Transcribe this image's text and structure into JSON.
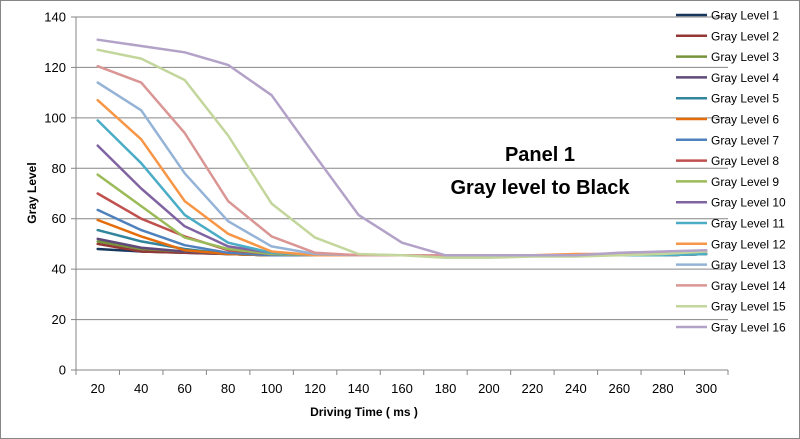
{
  "chart_data": {
    "type": "line",
    "title": "",
    "annotation_lines": [
      "Panel 1",
      "Gray level to Black"
    ],
    "xlabel": "Driving Time ( ms )",
    "ylabel": "Gray Level",
    "x": [
      20,
      40,
      60,
      80,
      100,
      120,
      140,
      160,
      180,
      200,
      220,
      240,
      260,
      280,
      300
    ],
    "ylim": [
      0,
      140
    ],
    "yticks": [
      0,
      20,
      40,
      60,
      80,
      100,
      120,
      140
    ],
    "grid": "horizontal",
    "legend_position": "right",
    "series": [
      {
        "name": "Gray Level 1",
        "color": "#17375E",
        "values": [
          48,
          47,
          46.5,
          46,
          45.5,
          45.5,
          45.5,
          45.5,
          45.5,
          45.5,
          45.5,
          45.5,
          45.5,
          45.5,
          46
        ]
      },
      {
        "name": "Gray Level 2",
        "color": "#953735",
        "values": [
          50,
          47,
          46.5,
          46,
          45.5,
          45.5,
          45.5,
          45.5,
          45.5,
          45.5,
          45.5,
          45.5,
          45.5,
          45.5,
          46
        ]
      },
      {
        "name": "Gray Level 3",
        "color": "#77933C",
        "values": [
          51,
          48,
          47,
          46,
          45.5,
          45.5,
          45.5,
          45.5,
          45.5,
          45.5,
          45.5,
          45.5,
          45.5,
          45.5,
          46
        ]
      },
      {
        "name": "Gray Level 4",
        "color": "#5F497A",
        "values": [
          52,
          48.5,
          47,
          46,
          45.5,
          45.5,
          45.5,
          45.5,
          45.5,
          45.5,
          45.5,
          45.5,
          45.5,
          45.5,
          46
        ]
      },
      {
        "name": "Gray Level 5",
        "color": "#31859C",
        "values": [
          55.5,
          51,
          48,
          46,
          45.5,
          45.5,
          45.5,
          45.5,
          45.5,
          45.5,
          45.5,
          45.5,
          45.5,
          45.5,
          46
        ]
      },
      {
        "name": "Gray Level 6",
        "color": "#E46C0A",
        "values": [
          59.5,
          53,
          47.5,
          46,
          45.5,
          45.5,
          45.5,
          45.5,
          45.5,
          45.5,
          45.5,
          45.5,
          45.5,
          45.5,
          46
        ]
      },
      {
        "name": "Gray Level 7",
        "color": "#4F81BD",
        "values": [
          63.5,
          55.5,
          49.5,
          46.5,
          45.5,
          45.5,
          45.5,
          45.5,
          45.5,
          45.5,
          45.5,
          45.5,
          45.5,
          45.5,
          46
        ]
      },
      {
        "name": "Gray Level 8",
        "color": "#C0504D",
        "values": [
          70,
          60,
          53,
          47.5,
          46,
          45.5,
          45.5,
          45.5,
          45.5,
          45.5,
          45.5,
          45.5,
          45.5,
          45.5,
          46
        ]
      },
      {
        "name": "Gray Level 9",
        "color": "#9BBB59",
        "values": [
          77.5,
          65,
          52.5,
          48,
          46,
          45.5,
          45.5,
          45.5,
          45.5,
          45.5,
          45.5,
          45.5,
          45.5,
          45.5,
          46
        ]
      },
      {
        "name": "Gray Level 10",
        "color": "#8064A2",
        "values": [
          89,
          72,
          57,
          49,
          46.5,
          45.5,
          45.5,
          45.5,
          45.5,
          45.5,
          45.5,
          45.5,
          45.5,
          45.5,
          46
        ]
      },
      {
        "name": "Gray Level 11",
        "color": "#4BACC6",
        "values": [
          99,
          82,
          61.5,
          50.5,
          46.5,
          45.5,
          45.5,
          45.5,
          45.5,
          45.5,
          45.5,
          45.5,
          45.5,
          45.5,
          46
        ]
      },
      {
        "name": "Gray Level 12",
        "color": "#F79646",
        "values": [
          107,
          91.5,
          67,
          54,
          47,
          45.5,
          45.5,
          45.5,
          45.5,
          45.5,
          45.5,
          46,
          46,
          46.5,
          47
        ]
      },
      {
        "name": "Gray Level 13",
        "color": "#95B3D7",
        "values": [
          114,
          103,
          78,
          59,
          49,
          46,
          45.5,
          45.5,
          45.5,
          45.5,
          45.5,
          45.5,
          46,
          46.5,
          47
        ]
      },
      {
        "name": "Gray Level 14",
        "color": "#D99694",
        "values": [
          120.5,
          114,
          94,
          67,
          53,
          46.5,
          45.5,
          45.5,
          45.5,
          45.5,
          45.5,
          45.5,
          46,
          46.5,
          47
        ]
      },
      {
        "name": "Gray Level 15",
        "color": "#C3D69B",
        "values": [
          127,
          123.5,
          115,
          93,
          66,
          52.5,
          46,
          45.5,
          44.5,
          44.5,
          45,
          45,
          45.5,
          46,
          47
        ]
      },
      {
        "name": "Gray Level 16",
        "color": "#B3A2C7",
        "values": [
          131,
          128.5,
          126,
          121,
          109,
          85,
          61.5,
          50.5,
          45.5,
          45.5,
          45.5,
          45.5,
          46.5,
          47,
          47.5
        ]
      }
    ]
  }
}
